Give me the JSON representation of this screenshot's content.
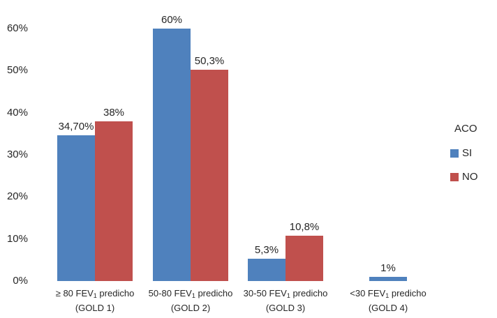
{
  "chart_data": {
    "type": "bar",
    "title": "",
    "xlabel": "",
    "ylabel": "",
    "ylim": [
      0,
      60
    ],
    "grid": false,
    "background_color": "#ffffff",
    "text_color": "#262626",
    "yticks": [
      {
        "value": 60,
        "label": "60%"
      },
      {
        "value": 50,
        "label": "50%"
      },
      {
        "value": 40,
        "label": "40%"
      },
      {
        "value": 30,
        "label": "30%"
      },
      {
        "value": 20,
        "label": "20%"
      },
      {
        "value": 10,
        "label": "10%"
      },
      {
        "value": 0,
        "label": "0%"
      }
    ],
    "categories": [
      {
        "pre": "≥ 80 FEV",
        "sub": "1",
        "post": " predicho",
        "line2": "(GOLD 1)"
      },
      {
        "pre": "50-80 FEV",
        "sub": "1",
        "post": " predicho",
        "line2": "(GOLD 2)"
      },
      {
        "pre": "30-50 FEV",
        "sub": "1",
        "post": " predicho",
        "line2": "(GOLD 3)"
      },
      {
        "pre": "<30 FEV",
        "sub": "1",
        "post": " predicho",
        "line2": "(GOLD 4)"
      }
    ],
    "series": [
      {
        "name": "SI",
        "color": "#4f81bd",
        "values": [
          34.7,
          60,
          5.3,
          1
        ],
        "value_labels": [
          "34,70%",
          "60%",
          "5,3%",
          "1%"
        ]
      },
      {
        "name": "NO",
        "color": "#c0504d",
        "values": [
          38,
          50.3,
          10.8,
          null
        ],
        "value_labels": [
          "38%",
          "50,3%",
          "10,8%",
          null
        ]
      }
    ],
    "legend": {
      "title": "ACO",
      "position": "right"
    }
  }
}
